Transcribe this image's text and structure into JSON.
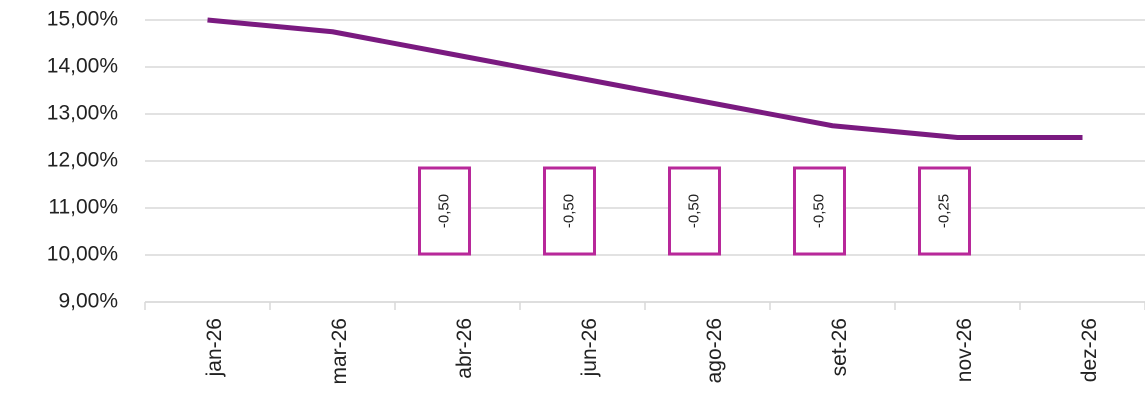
{
  "chart_data": {
    "type": "line",
    "categories": [
      "jan-26",
      "mar-26",
      "abr-26",
      "jun-26",
      "ago-26",
      "set-26",
      "nov-26",
      "dez-26"
    ],
    "series": [
      {
        "color": "#7a1a80",
        "values": [
          15,
          14.75,
          14.25,
          13.75,
          13.25,
          12.75,
          12.5,
          12.5
        ]
      }
    ],
    "ylim": [
      9,
      15
    ],
    "yticks": [
      {
        "value": 9,
        "label": "9,00%"
      },
      {
        "value": 10,
        "label": "10,00%"
      },
      {
        "value": 11,
        "label": "11,00%"
      },
      {
        "value": 12,
        "label": "12,00%"
      },
      {
        "value": 13,
        "label": "13,00%"
      },
      {
        "value": 14,
        "label": "14,00%"
      },
      {
        "value": 15,
        "label": "15,00%"
      }
    ],
    "grid": true,
    "annotations": [
      {
        "x": "abr-26",
        "text": "-0,50"
      },
      {
        "x": "jun-26",
        "text": "-0,50"
      },
      {
        "x": "ago-26",
        "text": "-0,50"
      },
      {
        "x": "set-26",
        "text": "-0,50"
      },
      {
        "x": "nov-26",
        "text": "-0,25"
      }
    ],
    "annotation_color": "#b8289a"
  }
}
